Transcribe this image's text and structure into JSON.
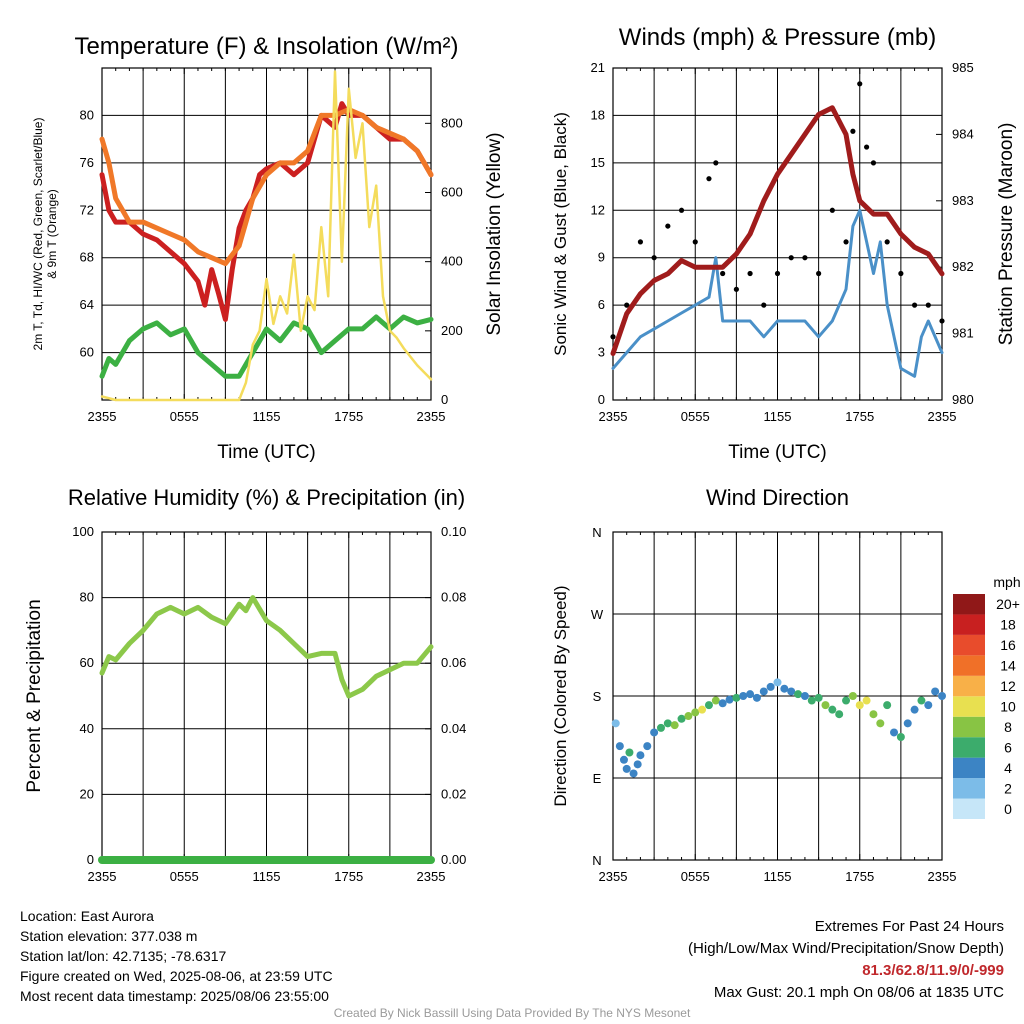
{
  "chart_data": [
    {
      "type": "line",
      "title": "Temperature (F) & Insolation (W/m²)",
      "xlabel": "Time (UTC)",
      "ylabel_left": [
        "2m T, Td, HI/WC (Red, Green, Scarlet/Blue)",
        "& 9m T (Orange)"
      ],
      "ylabel_right": "Solar Insolation (Yellow)",
      "x_ticks": [
        "2355",
        "0555",
        "1155",
        "1755",
        "2355"
      ],
      "ylim_left": [
        56,
        84
      ],
      "yticks_left": [
        60,
        64,
        68,
        72,
        76,
        80
      ],
      "ylim_right": [
        0,
        960
      ],
      "yticks_right": [
        0,
        200,
        400,
        600,
        800
      ],
      "series": [
        {
          "name": "2m T",
          "color": "#cc2020",
          "axis": "left",
          "x": [
            0,
            0.5,
            1,
            2,
            3,
            4,
            5,
            6,
            7,
            7.5,
            8,
            8.5,
            9,
            9.5,
            10,
            10.5,
            11,
            11.5,
            12,
            13,
            14,
            15,
            16,
            17,
            17.5,
            18,
            19,
            20,
            21,
            22,
            23,
            24
          ],
          "y": [
            75,
            72,
            71,
            71,
            70,
            69.5,
            68.5,
            67.5,
            66,
            64,
            67,
            65,
            62.8,
            67,
            70.5,
            72,
            73,
            75,
            75.5,
            76,
            75,
            76,
            80,
            79,
            81,
            80,
            80,
            79,
            78,
            78,
            77,
            75
          ]
        },
        {
          "name": "Td",
          "color": "#3cb043",
          "axis": "left",
          "x": [
            0,
            0.5,
            1,
            2,
            3,
            4,
            5,
            6,
            7,
            8,
            9,
            10,
            11,
            12,
            13,
            14,
            15,
            16,
            17,
            18,
            19,
            20,
            21,
            22,
            23,
            24
          ],
          "y": [
            58,
            59.5,
            59,
            61,
            62,
            62.5,
            61.5,
            62,
            60,
            59,
            58,
            58,
            60,
            62,
            61,
            62.5,
            62,
            60,
            61,
            62,
            62,
            63,
            62,
            63,
            62.5,
            62.8
          ]
        },
        {
          "name": "9m T",
          "color": "#f07828",
          "axis": "left",
          "x": [
            0,
            0.5,
            1,
            2,
            3,
            4,
            5,
            6,
            7,
            8,
            9,
            10,
            11,
            12,
            13,
            14,
            15,
            16,
            17,
            18,
            19,
            20,
            21,
            22,
            23,
            24
          ],
          "y": [
            78,
            76,
            73,
            71,
            71,
            70.5,
            70,
            69.5,
            68.5,
            68,
            67.5,
            69,
            73,
            75,
            76,
            76,
            77,
            80,
            80,
            80.5,
            80,
            79,
            78.5,
            78,
            77,
            75
          ]
        },
        {
          "name": "Solar Insolation",
          "color": "#f4dc5c",
          "axis": "right",
          "x": [
            0,
            1,
            2,
            3,
            4,
            5,
            6,
            7,
            8,
            9,
            10,
            10.5,
            11,
            11.5,
            12,
            12.5,
            13,
            13.5,
            14,
            14.5,
            15,
            15.5,
            16,
            16.5,
            17,
            17.5,
            18,
            18.5,
            19,
            19.5,
            20,
            20.5,
            21,
            21.5,
            22,
            23,
            24
          ],
          "y": [
            10,
            0,
            0,
            0,
            0,
            0,
            0,
            0,
            0,
            0,
            0,
            50,
            160,
            200,
            350,
            220,
            300,
            250,
            420,
            200,
            300,
            260,
            500,
            300,
            950,
            400,
            900,
            700,
            800,
            500,
            620,
            300,
            200,
            180,
            150,
            100,
            60
          ]
        }
      ]
    },
    {
      "type": "line",
      "title": "Winds (mph) & Pressure (mb)",
      "xlabel": "Time (UTC)",
      "ylabel_left": "Sonic Wind & Gust (Blue, Black)",
      "ylabel_right": "Station Pressure (Maroon)",
      "x_ticks": [
        "2355",
        "0555",
        "1155",
        "1755",
        "2355"
      ],
      "ylim_left": [
        0,
        21
      ],
      "yticks_left": [
        0,
        3,
        6,
        9,
        12,
        15,
        18,
        21
      ],
      "ylim_right": [
        980,
        985
      ],
      "yticks_right": [
        980,
        981,
        982,
        983,
        984,
        985
      ],
      "series": [
        {
          "name": "Sonic Wind",
          "color": "#4a90c8",
          "axis": "left",
          "x": [
            0,
            1,
            2,
            3,
            4,
            5,
            6,
            7,
            7.5,
            8,
            9,
            10,
            11,
            12,
            13,
            14,
            15,
            16,
            17,
            17.5,
            18,
            19,
            19.5,
            20,
            21,
            22,
            22.5,
            23,
            24
          ],
          "y": [
            2,
            3,
            4,
            4.5,
            5,
            5.5,
            6,
            6.5,
            9,
            5,
            5,
            5,
            4,
            5,
            5,
            5,
            4,
            5,
            7,
            11,
            12,
            8,
            10,
            6,
            2,
            1.5,
            4,
            5,
            3
          ]
        },
        {
          "name": "Gust",
          "color": "#000000",
          "axis": "left",
          "mode": "points",
          "x": [
            0,
            1,
            2,
            3,
            4,
            5,
            6,
            7,
            7.5,
            8,
            9,
            10,
            11,
            12,
            13,
            14,
            15,
            16,
            17,
            17.5,
            18,
            18.5,
            19,
            20,
            21,
            22,
            23,
            24
          ],
          "y": [
            4,
            6,
            10,
            9,
            11,
            12,
            10,
            14,
            15,
            8,
            7,
            8,
            6,
            8,
            9,
            9,
            8,
            12,
            10,
            17,
            20,
            16,
            15,
            10,
            8,
            6,
            6,
            5
          ]
        },
        {
          "name": "Station Pressure",
          "color": "#a01c1c",
          "axis": "right",
          "x": [
            0,
            1,
            2,
            3,
            4,
            5,
            6,
            7,
            8,
            9,
            10,
            11,
            12,
            13,
            14,
            15,
            16,
            17,
            17.5,
            18,
            19,
            20,
            21,
            22,
            23,
            24
          ],
          "y": [
            980.7,
            981.3,
            981.6,
            981.8,
            981.9,
            982.1,
            982.0,
            982.0,
            982.0,
            982.2,
            982.5,
            983.0,
            983.4,
            983.7,
            984.0,
            984.3,
            984.4,
            984.0,
            983.4,
            983.0,
            982.8,
            982.8,
            982.5,
            982.3,
            982.2,
            981.9
          ]
        }
      ]
    },
    {
      "type": "line",
      "title": "Relative Humidity (%) & Precipitation (in)",
      "xlabel": "",
      "ylabel_left": "Percent & Precipitation",
      "x_ticks": [
        "2355",
        "0555",
        "1155",
        "1755",
        "2355"
      ],
      "ylim_left": [
        0,
        100
      ],
      "yticks_left": [
        0,
        20,
        40,
        60,
        80,
        100
      ],
      "ylim_right": [
        0,
        0.1
      ],
      "yticks_right": [
        "0.00",
        "0.02",
        "0.04",
        "0.06",
        "0.08",
        "0.10"
      ],
      "series": [
        {
          "name": "Relative Humidity",
          "color": "#8cc84a",
          "axis": "left",
          "x": [
            0,
            0.5,
            1,
            2,
            3,
            4,
            5,
            6,
            7,
            8,
            9,
            10,
            10.5,
            11,
            12,
            13,
            14,
            15,
            16,
            17,
            17.5,
            18,
            19,
            20,
            21,
            22,
            23,
            24
          ],
          "y": [
            57,
            62,
            61,
            66,
            70,
            75,
            77,
            75,
            77,
            74,
            72,
            78,
            76,
            80,
            73,
            70,
            66,
            62,
            63,
            63,
            55,
            50,
            52,
            56,
            58,
            60,
            60,
            65
          ]
        },
        {
          "name": "Precipitation",
          "color": "#3cb043",
          "axis": "right",
          "x": [
            0,
            24
          ],
          "y": [
            0,
            0
          ]
        }
      ]
    },
    {
      "type": "scatter",
      "title": "Wind Direction",
      "xlabel": "",
      "ylabel_left": "Direction (Colored By Speed)",
      "x_ticks": [
        "2355",
        "0555",
        "1155",
        "1755",
        "2355"
      ],
      "y_ticks": [
        "N",
        "E",
        "S",
        "W",
        "N"
      ],
      "ylim": [
        0,
        360
      ],
      "colorbar": {
        "title": "mph",
        "labels": [
          "0",
          "2",
          "4",
          "6",
          "8",
          "10",
          "12",
          "14",
          "16",
          "18",
          "20+"
        ],
        "colors": [
          "#c6e6f8",
          "#7cbce8",
          "#3c84c4",
          "#3cac6c",
          "#88c444",
          "#e8e050",
          "#f8b048",
          "#f07028",
          "#e84c2c",
          "#c82020",
          "#901818"
        ]
      },
      "points": [
        [
          0.2,
          150,
          2
        ],
        [
          0.5,
          125,
          3
        ],
        [
          0.8,
          110,
          4
        ],
        [
          1,
          100,
          4
        ],
        [
          1.2,
          118,
          5
        ],
        [
          1.5,
          95,
          3
        ],
        [
          1.8,
          105,
          4
        ],
        [
          2,
          115,
          3
        ],
        [
          2.5,
          125,
          4
        ],
        [
          3,
          140,
          4
        ],
        [
          3.5,
          145,
          6
        ],
        [
          4,
          150,
          6
        ],
        [
          4.5,
          148,
          7
        ],
        [
          5,
          155,
          6
        ],
        [
          5.5,
          158,
          7
        ],
        [
          6,
          162,
          8
        ],
        [
          6.5,
          165,
          9
        ],
        [
          7,
          170,
          6
        ],
        [
          7.5,
          175,
          8
        ],
        [
          8,
          172,
          4
        ],
        [
          8.5,
          176,
          4
        ],
        [
          9,
          178,
          5
        ],
        [
          9.5,
          180,
          4
        ],
        [
          10,
          182,
          4
        ],
        [
          10.5,
          178,
          3
        ],
        [
          11,
          185,
          4
        ],
        [
          11.5,
          190,
          3
        ],
        [
          12,
          195,
          2
        ],
        [
          12.5,
          188,
          4
        ],
        [
          13,
          185,
          3
        ],
        [
          13.5,
          182,
          5
        ],
        [
          14,
          180,
          4
        ],
        [
          14.5,
          175,
          6
        ],
        [
          15,
          178,
          5
        ],
        [
          15.5,
          170,
          7
        ],
        [
          16,
          165,
          6
        ],
        [
          16.5,
          160,
          5
        ],
        [
          17,
          175,
          6
        ],
        [
          17.5,
          180,
          8
        ],
        [
          18,
          170,
          10
        ],
        [
          18.5,
          175,
          9
        ],
        [
          19,
          160,
          8
        ],
        [
          19.5,
          150,
          7
        ],
        [
          20,
          170,
          5
        ],
        [
          20.5,
          140,
          4
        ],
        [
          21,
          135,
          6
        ],
        [
          21.5,
          150,
          3
        ],
        [
          22,
          165,
          4
        ],
        [
          22.5,
          175,
          5
        ],
        [
          23,
          170,
          4
        ],
        [
          23.5,
          185,
          3
        ],
        [
          24,
          180,
          3
        ]
      ]
    }
  ],
  "footer": {
    "location": "Location: East Aurora",
    "elevation": "Station elevation: 377.038 m",
    "latlon": "Station lat/lon: 42.7135; -78.6317",
    "created": "Figure created on Wed, 2025-08-06, at 23:59 UTC",
    "recent": "Most recent data timestamp: 2025/08/06 23:55:00",
    "extremes_title": "Extremes For Past 24 Hours",
    "extremes_sub": "(High/Low/Max Wind/Precipitation/Snow Depth)",
    "extremes_values": "81.3/62.8/11.9/0/-999",
    "max_gust": "Max Gust: 20.1 mph On 08/06 at 1835 UTC",
    "credit": "Created By Nick Bassill Using Data Provided By The NYS Mesonet",
    "extremes_color": "#c0282c"
  }
}
